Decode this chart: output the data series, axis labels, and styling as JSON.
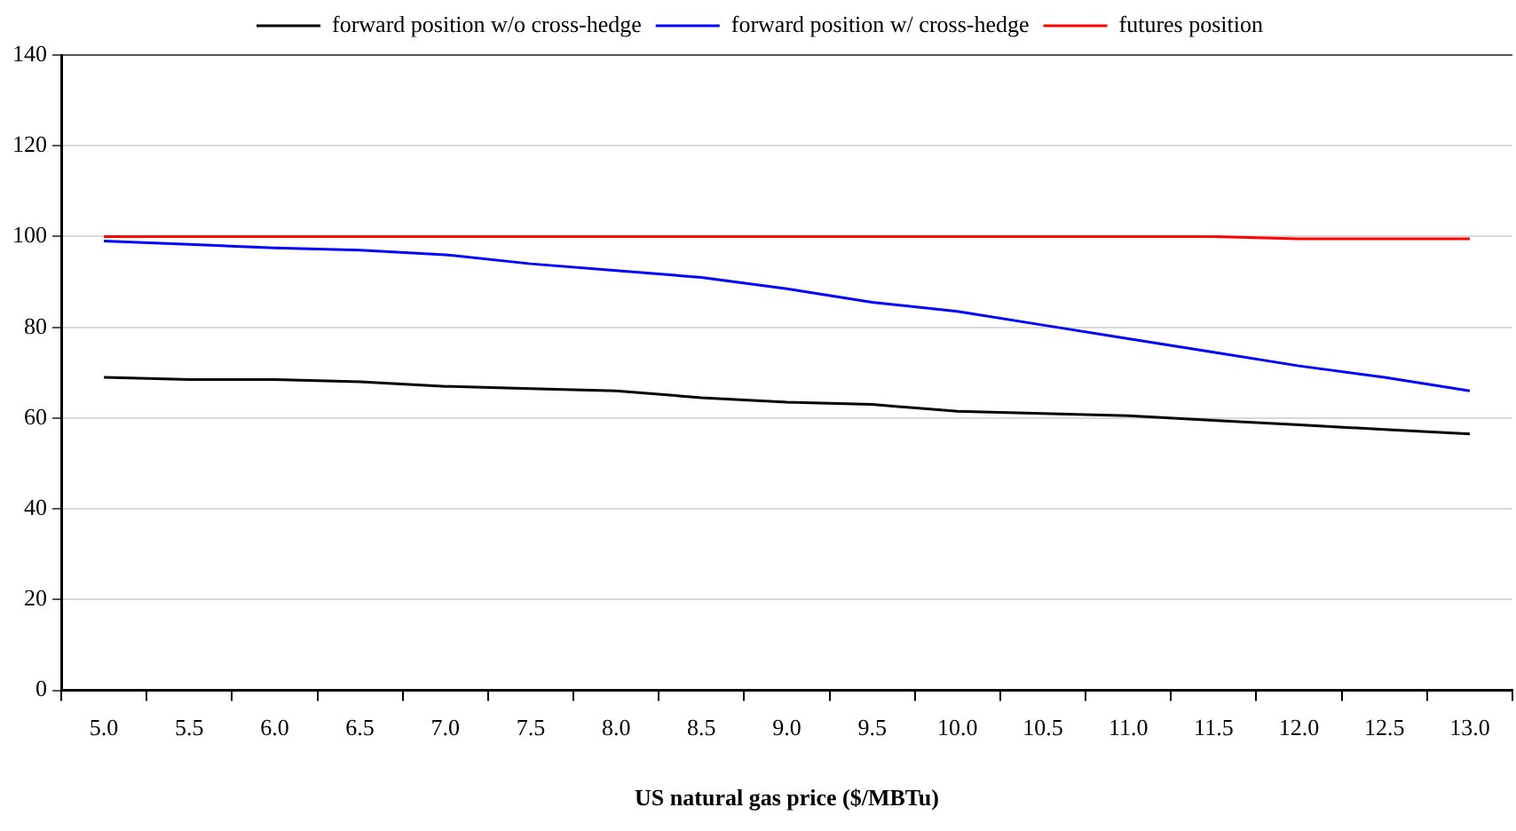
{
  "chart_data": {
    "type": "line",
    "xlabel": "US natural gas price ($/MBTu)",
    "categories": [
      "5.0",
      "5.5",
      "6.0",
      "6.5",
      "7.0",
      "7.5",
      "8.0",
      "8.5",
      "9.0",
      "9.5",
      "10.0",
      "10.5",
      "11.0",
      "11.5",
      "12.0",
      "12.5",
      "13.0"
    ],
    "series": [
      {
        "name": "forward position w/o cross-hedge",
        "color": "#000000",
        "values": [
          69,
          68.5,
          68.5,
          68,
          67,
          66.5,
          66,
          64.5,
          63.5,
          63,
          61.5,
          61,
          60.5,
          59.5,
          58.5,
          57.5,
          56.5
        ]
      },
      {
        "name": "forward position w/ cross-hedge",
        "color": "#0000ff",
        "values": [
          99,
          98.3,
          97.5,
          97,
          96,
          94,
          92.5,
          91,
          88.5,
          85.5,
          83.5,
          80.5,
          77.5,
          74.5,
          71.5,
          69,
          66
        ]
      },
      {
        "name": "futures position",
        "color": "#ff0000",
        "values": [
          100,
          100,
          100,
          100,
          100,
          100,
          100,
          100,
          100,
          100,
          100,
          100,
          100,
          100,
          99.5,
          99.5,
          99.5
        ]
      }
    ],
    "ylim": [
      0,
      140
    ],
    "yticks": [
      0,
      20,
      40,
      60,
      80,
      100,
      120,
      140
    ],
    "grid": "y",
    "legend": "top",
    "marker": "none",
    "line_style": "solid"
  }
}
